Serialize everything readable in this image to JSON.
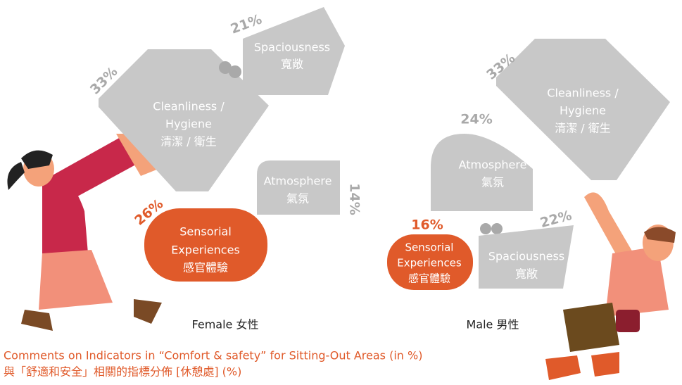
{
  "groups": [
    {
      "name": "Female 女性",
      "items": [
        {
          "label": [
            "Cleanliness /",
            "Hygiene",
            "清潔 / 衛生"
          ],
          "share": "33%"
        },
        {
          "label": [
            "Spaciousness",
            "寬敞"
          ],
          "share": "21%"
        },
        {
          "label": [
            "Atmosphere",
            "氣氛"
          ],
          "share": "14%"
        },
        {
          "label": [
            "Sensorial",
            "Experiences",
            "感官體驗"
          ],
          "share": "26%"
        }
      ]
    },
    {
      "name": "Male 男性",
      "items": [
        {
          "label": [
            "Cleanliness /",
            "Hygiene",
            "清潔 / 衛生"
          ],
          "share": "33%"
        },
        {
          "label": [
            "Atmosphere",
            "氣氛"
          ],
          "share": "24%"
        },
        {
          "label": [
            "Sensorial",
            "Experiences",
            "感官體驗"
          ],
          "share": "16%"
        },
        {
          "label": [
            "Spaciousness",
            "寬敞"
          ],
          "share": "22%"
        }
      ]
    }
  ],
  "caption": [
    "Comments on Indicators in “Comfort & safety” for Sitting-Out Areas (in %)",
    "與「舒適和安全」相關的指標分佈 [休憩處] (%)"
  ]
}
